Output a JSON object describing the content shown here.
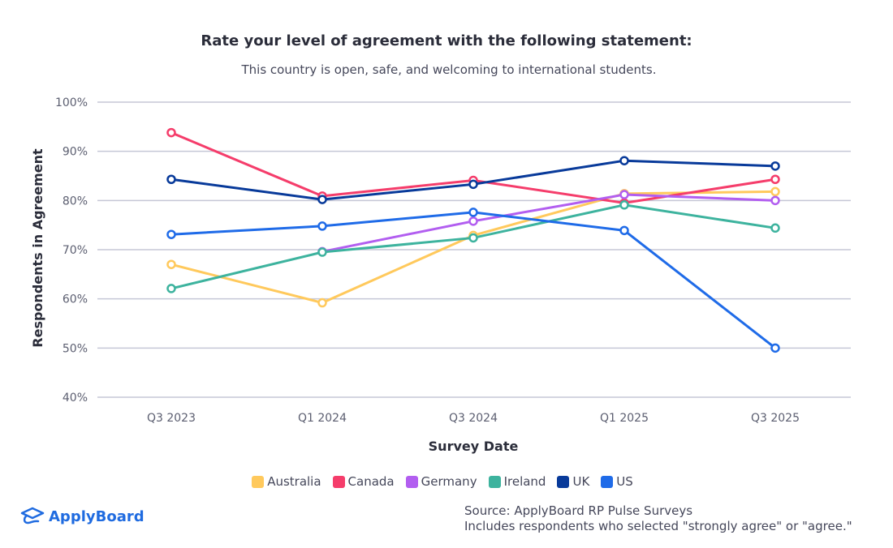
{
  "chart_data": {
    "type": "line",
    "title": "Rate your level of agreement with the following statement:",
    "subtitle": "This country is open, safe, and welcoming to international students.",
    "xlabel": "Survey Date",
    "ylabel": "Respondents in Agreement",
    "categories": [
      "Q3 2023",
      "Q1 2024",
      "Q3 2024",
      "Q1 2025",
      "Q3 2025"
    ],
    "ylim": [
      40,
      100
    ],
    "yticks": [
      "40%",
      "50%",
      "60%",
      "70%",
      "80%",
      "90%",
      "100%"
    ],
    "grid": true,
    "legend_position": "bottom",
    "series": [
      {
        "name": "Australia",
        "color": "#ffc95c",
        "values": [
          67.0,
          59.2,
          72.9,
          81.4,
          81.8
        ]
      },
      {
        "name": "Canada",
        "color": "#f53d6b",
        "values": [
          93.8,
          80.9,
          84.1,
          79.5,
          84.3
        ]
      },
      {
        "name": "Germany",
        "color": "#b25ef0",
        "values": [
          null,
          69.6,
          75.8,
          81.2,
          80.0
        ]
      },
      {
        "name": "Ireland",
        "color": "#3db39e",
        "values": [
          62.1,
          69.5,
          72.4,
          79.1,
          74.4
        ]
      },
      {
        "name": "UK",
        "color": "#083a9a",
        "values": [
          84.3,
          80.2,
          83.3,
          88.1,
          87.0
        ]
      },
      {
        "name": "US",
        "color": "#1f6be8",
        "values": [
          73.1,
          74.8,
          77.6,
          73.9,
          50.0
        ]
      }
    ]
  },
  "footer": {
    "logo_text": "ApplyBoard",
    "source_line1": "Source: ApplyBoard RP Pulse Surveys",
    "source_line2": "Includes respondents who selected \"strongly agree\" or \"agree.\""
  }
}
